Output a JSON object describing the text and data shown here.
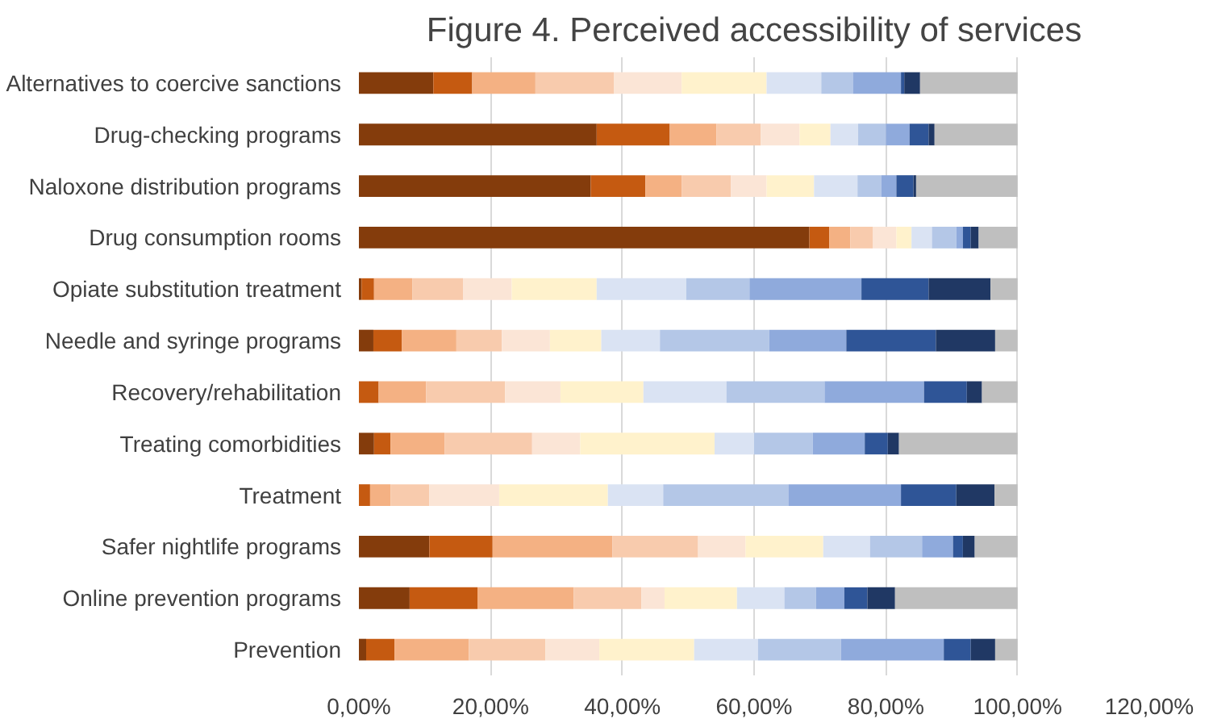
{
  "chart_data": {
    "type": "bar",
    "orientation": "horizontal",
    "stacked": true,
    "title": "Figure 4. Perceived accessibility of services",
    "categories": [
      "Alternatives to coercive sanctions",
      "Drug-checking programs",
      "Naloxone distribution programs",
      "Drug consumption rooms",
      "Opiate substitution treatment",
      "Needle and syringe programs",
      "Recovery/rehabilitation",
      "Treating comorbidities",
      "Treatment",
      "Safer nightlife programs",
      "Online prevention programs",
      "Prevention"
    ],
    "series": [
      {
        "color": "#843c0c",
        "values": [
          11.3,
          36.1,
          35.2,
          68.4,
          0.4,
          2.2,
          0,
          2.3,
          0,
          10.7,
          7.7,
          1.1
        ]
      },
      {
        "color": "#c55a11",
        "values": [
          5.9,
          11.1,
          8.3,
          3.0,
          1.9,
          4.3,
          3.0,
          2.5,
          1.7,
          9.6,
          10.3,
          4.3
        ]
      },
      {
        "color": "#f4b183",
        "values": [
          9.6,
          7.1,
          5.5,
          3.2,
          5.8,
          8.3,
          7.2,
          8.2,
          3.1,
          18.2,
          14.6,
          11.3
        ]
      },
      {
        "color": "#f8cbad",
        "values": [
          11.9,
          6.7,
          7.5,
          3.4,
          7.7,
          6.9,
          12.0,
          13.3,
          5.9,
          13.0,
          10.3,
          11.6
        ]
      },
      {
        "color": "#fbe5d6",
        "values": [
          10.3,
          5.9,
          5.4,
          3.6,
          7.4,
          7.3,
          8.4,
          7.3,
          10.6,
          7.2,
          3.5,
          8.2
        ]
      },
      {
        "color": "#fff2cc",
        "values": [
          12.9,
          4.7,
          7.2,
          2.3,
          12.9,
          7.8,
          12.6,
          20.4,
          16.5,
          11.8,
          11.0,
          14.4
        ]
      },
      {
        "color": "#dae3f3",
        "values": [
          8.3,
          4.2,
          6.6,
          3.1,
          13.6,
          8.9,
          12.6,
          6.0,
          8.4,
          7.1,
          7.2,
          9.7
        ]
      },
      {
        "color": "#b4c7e7",
        "values": [
          4.8,
          4.2,
          3.6,
          3.7,
          9.6,
          16.6,
          14.9,
          8.9,
          19.0,
          7.9,
          4.8,
          12.6
        ]
      },
      {
        "color": "#8faadc",
        "values": [
          7.3,
          3.6,
          2.3,
          1.0,
          17.0,
          11.7,
          15.1,
          7.9,
          17.1,
          4.7,
          4.3,
          15.6
        ]
      },
      {
        "color": "#2f5597",
        "values": [
          0.5,
          2.9,
          2.6,
          1.2,
          10.2,
          13.6,
          6.5,
          3.5,
          8.4,
          1.5,
          3.5,
          4.1
        ]
      },
      {
        "color": "#203864",
        "values": [
          2.4,
          0.9,
          0.4,
          1.2,
          9.4,
          9.0,
          2.3,
          1.7,
          5.8,
          1.8,
          4.2,
          3.7
        ]
      },
      {
        "color": "#bfbfbf",
        "values": [
          14.8,
          12.6,
          15.4,
          5.9,
          4.1,
          3.4,
          5.4,
          18.0,
          3.5,
          6.5,
          18.6,
          3.4
        ]
      }
    ],
    "xlim": [
      0,
      120
    ],
    "xticks": [
      {
        "value": 0,
        "label": "0,00%"
      },
      {
        "value": 20,
        "label": "20,00%"
      },
      {
        "value": 40,
        "label": "40,00%"
      },
      {
        "value": 60,
        "label": "60,00%"
      },
      {
        "value": 80,
        "label": "80,00%"
      },
      {
        "value": 100,
        "label": "100,00%"
      },
      {
        "value": 120,
        "label": "120,00%"
      }
    ],
    "grid": "x"
  }
}
